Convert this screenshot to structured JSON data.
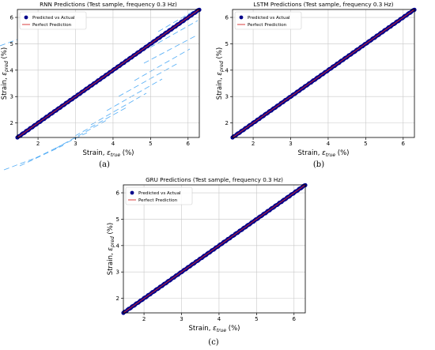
{
  "figure": {
    "captions": [
      "(a)",
      "(b)",
      "(c)"
    ]
  },
  "legend": {
    "predicted": "Predicted vs Actual",
    "perfect": "Perfect Prediction"
  },
  "colors": {
    "points": "#00008b",
    "perfect_line": "#d62728",
    "grid": "#c8c8c8",
    "watermark": "#42a5f5"
  },
  "chart_data": [
    {
      "type": "scatter",
      "title": "RNN Predictions (Test sample, frequency 0.3 Hz)",
      "xlabel_prefix": "Strain, ",
      "xlabel_symbol": "ε",
      "xlabel_sub": "true",
      "xlabel_suffix": " (%)",
      "ylabel_prefix": "Strain, ",
      "ylabel_symbol": "ε",
      "ylabel_sub": "pred",
      "ylabel_suffix": " (%)",
      "xlim": [
        1.45,
        6.3
      ],
      "ylim": [
        1.45,
        6.3
      ],
      "xticks": [
        2,
        3,
        4,
        5,
        6
      ],
      "yticks": [
        2,
        3,
        4,
        5,
        6
      ],
      "grid": true,
      "legend_position": "top-left",
      "series": [
        {
          "name": "Predicted vs Actual",
          "marker": "point",
          "x_range": [
            1.45,
            6.3
          ],
          "relation": "y ≈ x"
        },
        {
          "name": "Perfect Prediction",
          "marker": "line",
          "x": [
            1.45,
            6.3
          ],
          "y": [
            1.45,
            6.3
          ]
        }
      ]
    },
    {
      "type": "scatter",
      "title": "LSTM Predictions (Test sample, frequency 0.3 Hz)",
      "xlabel_prefix": "Strain, ",
      "xlabel_symbol": "ε",
      "xlabel_sub": "true",
      "xlabel_suffix": " (%)",
      "ylabel_prefix": "Strain, ",
      "ylabel_symbol": "ε",
      "ylabel_sub": "pred",
      "ylabel_suffix": " (%)",
      "xlim": [
        1.45,
        6.3
      ],
      "ylim": [
        1.45,
        6.3
      ],
      "xticks": [
        2,
        3,
        4,
        5,
        6
      ],
      "yticks": [
        2,
        3,
        4,
        5,
        6
      ],
      "grid": true,
      "legend_position": "top-left",
      "series": [
        {
          "name": "Predicted vs Actual",
          "marker": "point",
          "x_range": [
            1.45,
            6.3
          ],
          "relation": "y ≈ x"
        },
        {
          "name": "Perfect Prediction",
          "marker": "line",
          "x": [
            1.45,
            6.3
          ],
          "y": [
            1.45,
            6.3
          ]
        }
      ]
    },
    {
      "type": "scatter",
      "title": "GRU Predictions (Test sample, frequency 0.3 Hz)",
      "xlabel_prefix": "Strain, ",
      "xlabel_symbol": "ε",
      "xlabel_sub": "true",
      "xlabel_suffix": " (%)",
      "ylabel_prefix": "Strain, ",
      "ylabel_symbol": "ε",
      "ylabel_sub": "pred",
      "ylabel_suffix": " (%)",
      "xlim": [
        1.45,
        6.3
      ],
      "ylim": [
        1.45,
        6.3
      ],
      "xticks": [
        2,
        3,
        4,
        5,
        6
      ],
      "yticks": [
        2,
        3,
        4,
        5,
        6
      ],
      "grid": true,
      "legend_position": "top-left",
      "series": [
        {
          "name": "Predicted vs Actual",
          "marker": "point",
          "x_range": [
            1.45,
            6.3
          ],
          "relation": "y ≈ x"
        },
        {
          "name": "Perfect Prediction",
          "marker": "line",
          "x": [
            1.45,
            6.3
          ],
          "y": [
            1.45,
            6.3
          ]
        }
      ]
    }
  ]
}
